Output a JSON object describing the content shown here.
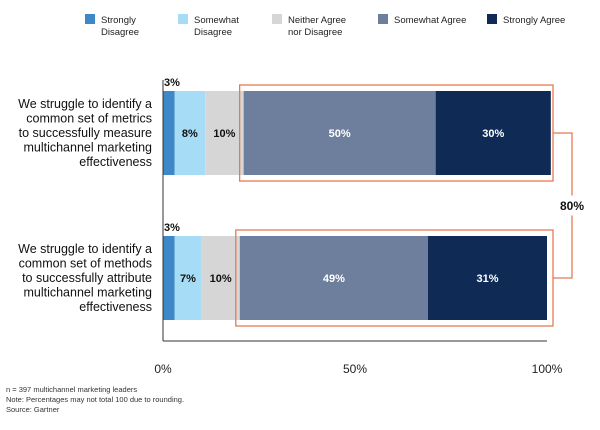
{
  "chart_data": {
    "type": "bar",
    "orientation": "horizontal",
    "stacked": true,
    "categories": [
      "We struggle to identify a common set of metrics to successfully measure multichannel marketing effectiveness",
      "We struggle to identify a common set of methods to successfully attribute multichannel marketing effectiveness"
    ],
    "category_lines": [
      [
        "We struggle to identify a",
        "common set of metrics",
        "to successfully measure",
        "multichannel marketing",
        "effectiveness"
      ],
      [
        "We struggle to identify a",
        "common set of methods",
        "to successfully attribute",
        "multichannel marketing",
        "effectiveness"
      ]
    ],
    "series": [
      {
        "name": "Strongly Disagree",
        "legend_lines": [
          "Strongly",
          "Disagree"
        ],
        "color": "#3f88c8",
        "values": [
          3,
          3
        ],
        "labels": [
          "3%",
          "3%"
        ]
      },
      {
        "name": "Somewhat Disagree",
        "legend_lines": [
          "Somewhat",
          "Disagree"
        ],
        "color": "#a6dcf5",
        "values": [
          8,
          7
        ],
        "labels": [
          "8%",
          "7%"
        ]
      },
      {
        "name": "Neither Agree nor Disagree",
        "legend_lines": [
          "Neither Agree",
          "nor Disagree"
        ],
        "color": "#d6d6d6",
        "values": [
          10,
          10
        ],
        "labels": [
          "10%",
          "10%"
        ]
      },
      {
        "name": "Somewhat Agree",
        "legend_lines": [
          "Somewhat Agree"
        ],
        "color": "#6e7f9e",
        "values": [
          50,
          49
        ],
        "labels": [
          "50%",
          "49%"
        ]
      },
      {
        "name": "Strongly Agree",
        "legend_lines": [
          "Strongly Agree"
        ],
        "color": "#0e2a55",
        "values": [
          30,
          31
        ],
        "labels": [
          "30%",
          "31%"
        ]
      }
    ],
    "xlim": [
      0,
      100
    ],
    "xticks": [
      0,
      50,
      100
    ],
    "xtick_labels": [
      "0%",
      "50%",
      "100%"
    ],
    "highlight_color": "#e87a52",
    "bracket_label": "80%",
    "legend_position": "top",
    "grid": false
  },
  "notes": [
    "n = 397 multichannel marketing leaders",
    "Note: Percentages may not total 100 due to rounding.",
    "Source: Gartner"
  ]
}
